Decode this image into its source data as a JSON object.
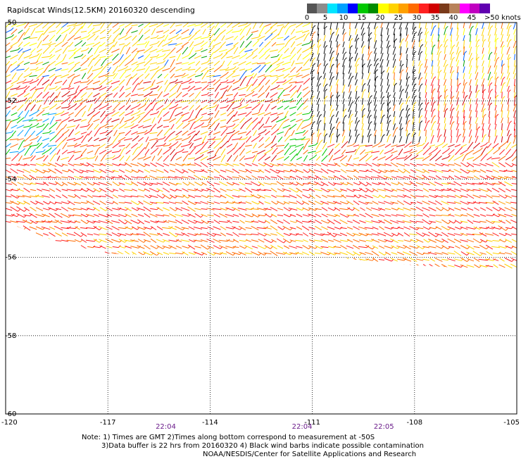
{
  "title": "Rapidscat Winds(12.5KM) 20160320 descending",
  "colorbar": {
    "labels": [
      "0",
      "5",
      "10",
      "15",
      "20",
      "25",
      "30",
      "35",
      "40",
      "45",
      ">50 knots"
    ],
    "colors": [
      "#555555",
      "#8c8c8c",
      "#00e5ff",
      "#00a0ff",
      "#0000ff",
      "#00c800",
      "#008c00",
      "#ffff00",
      "#ffd200",
      "#ffa000",
      "#ff6a00",
      "#ff2020",
      "#d00000",
      "#7a3a1a",
      "#b8825a",
      "#ff00ff",
      "#c000c0",
      "#6000b0"
    ]
  },
  "map": {
    "lon_range": [
      -120,
      -105
    ],
    "lat_range": [
      -60,
      -50
    ],
    "lon_ticks": [
      "-120",
      "-117",
      "-114",
      "-111",
      "-108",
      "-105"
    ],
    "lat_ticks": [
      "-50",
      "-52",
      "-54",
      "-56",
      "-58",
      "-60"
    ],
    "times": [
      {
        "label": "22:04",
        "lon": -115.3
      },
      {
        "label": "22:04",
        "lon": -111.3
      },
      {
        "label": "22:05",
        "lon": -108.9
      }
    ],
    "swath_lower_edge": [
      {
        "lon": -120,
        "lat": -55.1
      },
      {
        "lon": -118.5,
        "lat": -55.6
      },
      {
        "lon": -117,
        "lat": -55.9
      },
      {
        "lon": -114,
        "lat": -56.0
      },
      {
        "lon": -111,
        "lat": -55.95
      },
      {
        "lon": -108,
        "lat": -56.2
      },
      {
        "lon": -106,
        "lat": -56.3
      },
      {
        "lon": -105,
        "lat": -56.4
      }
    ]
  },
  "notes": [
    "Note: 1) Times are GMT 2)Times along bottom correspond to measurement at -50S",
    "3)Data buffer is 22 hrs from 20160320 4) Black wind barbs indicate possible contamination",
    "NOAA/NESDIS/Center for Satellite Applications and Research"
  ]
}
